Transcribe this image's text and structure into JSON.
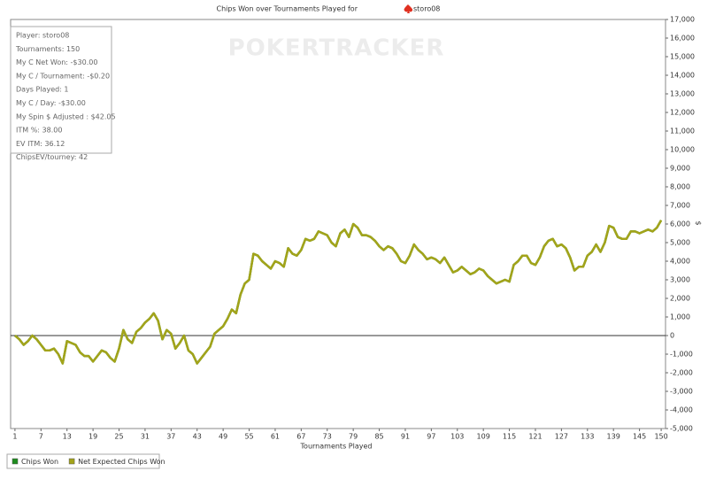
{
  "chart_data": {
    "type": "line",
    "title": "Chips Won over Tournaments Played for",
    "player": "storo08",
    "watermark": "POKERTRACKER",
    "xlabel": "Tournaments Played",
    "ylabel": "$",
    "stats": [
      "Player: storo08",
      "Tournaments: 150",
      "My C Net Won: -$30.00",
      "My C / Tournament: -$0.20",
      "Days Played: 1",
      "My C / Day: -$30.00",
      "My Spin $ Adjusted : $42.05",
      "ITM %: 38.00",
      "EV ITM: 36.12",
      "ChipsEV/tourney: 42"
    ],
    "x": [
      1,
      2,
      3,
      4,
      5,
      6,
      7,
      8,
      9,
      10,
      11,
      12,
      13,
      14,
      15,
      16,
      17,
      18,
      19,
      20,
      21,
      22,
      23,
      24,
      25,
      26,
      27,
      28,
      29,
      30,
      31,
      32,
      33,
      34,
      35,
      36,
      37,
      38,
      39,
      40,
      41,
      42,
      43,
      44,
      45,
      46,
      47,
      48,
      49,
      50,
      51,
      52,
      53,
      54,
      55,
      56,
      57,
      58,
      59,
      60,
      61,
      62,
      63,
      64,
      65,
      66,
      67,
      68,
      69,
      70,
      71,
      72,
      73,
      74,
      75,
      76,
      77,
      78,
      79,
      80,
      81,
      82,
      83,
      84,
      85,
      86,
      87,
      88,
      89,
      90,
      91,
      92,
      93,
      94,
      95,
      96,
      97,
      98,
      99,
      100,
      101,
      102,
      103,
      104,
      105,
      106,
      107,
      108,
      109,
      110,
      111,
      112,
      113,
      114,
      115,
      116,
      117,
      118,
      119,
      120,
      121,
      122,
      123,
      124,
      125,
      126,
      127,
      128,
      129,
      130,
      131,
      132,
      133,
      134,
      135,
      136,
      137,
      138,
      139,
      140,
      141,
      142,
      143,
      144,
      145,
      146,
      147,
      148,
      149,
      150
    ],
    "series": [
      {
        "name": "Chips Won",
        "color": "#1e8c1e",
        "values": [
          0,
          -200,
          -500,
          -300,
          0,
          -200,
          -500,
          -800,
          -800,
          -700,
          -1000,
          -1500,
          -300,
          -400,
          -500,
          -900,
          -1100,
          -1100,
          -1400,
          -1100,
          -800,
          -900,
          -1200,
          -1400,
          -700,
          300,
          -200,
          -400,
          200,
          400,
          700,
          900,
          1200,
          800,
          -200,
          300,
          100,
          -700,
          -400,
          0,
          -800,
          -1000,
          -1500,
          -1200,
          -900,
          -600,
          100,
          300,
          500,
          900,
          1400,
          1200,
          2200,
          2800,
          3000,
          4400,
          4300,
          4000,
          3800,
          3600,
          4000,
          3900,
          3700,
          4700,
          4400,
          4300,
          4600,
          5200,
          5100,
          5200,
          5600,
          5500,
          5400,
          5000,
          4800,
          5500,
          5700,
          5300,
          6000,
          5800,
          5400,
          5400,
          5300,
          5100,
          4800,
          4600,
          4800,
          4700,
          4400,
          4000,
          3900,
          4300,
          4900,
          4600,
          4400,
          4100,
          4200,
          4100,
          3900,
          4200,
          3800,
          3400,
          3500,
          3700,
          3500,
          3300,
          3400,
          3600,
          3500,
          3200,
          3000,
          2800,
          2900,
          3000,
          2900,
          3800,
          4000,
          4300,
          4300,
          3900,
          3800,
          4200,
          4800,
          5100,
          5200,
          4800,
          4900,
          4700,
          4200,
          3500,
          3700,
          3700,
          4300,
          4500,
          4900,
          4500,
          5000,
          5900,
          5800,
          5300,
          5200,
          5200,
          5600,
          5600,
          5500,
          5600,
          5700,
          5600,
          5800,
          6200
        ]
      },
      {
        "name": "Net Expected Chips Won",
        "color": "#a3a31a",
        "values": [
          0,
          -200,
          -500,
          -300,
          0,
          -200,
          -500,
          -800,
          -800,
          -700,
          -1000,
          -1500,
          -300,
          -400,
          -500,
          -900,
          -1100,
          -1100,
          -1400,
          -1100,
          -800,
          -900,
          -1200,
          -1400,
          -700,
          300,
          -200,
          -400,
          200,
          400,
          700,
          900,
          1200,
          800,
          -200,
          300,
          100,
          -700,
          -400,
          0,
          -800,
          -1000,
          -1500,
          -1200,
          -900,
          -600,
          100,
          300,
          500,
          900,
          1400,
          1200,
          2200,
          2800,
          3000,
          4400,
          4300,
          4000,
          3800,
          3600,
          4000,
          3900,
          3700,
          4700,
          4400,
          4300,
          4600,
          5200,
          5100,
          5200,
          5600,
          5500,
          5400,
          5000,
          4800,
          5500,
          5700,
          5300,
          6000,
          5800,
          5400,
          5400,
          5300,
          5100,
          4800,
          4600,
          4800,
          4700,
          4400,
          4000,
          3900,
          4300,
          4900,
          4600,
          4400,
          4100,
          4200,
          4100,
          3900,
          4200,
          3800,
          3400,
          3500,
          3700,
          3500,
          3300,
          3400,
          3600,
          3500,
          3200,
          3000,
          2800,
          2900,
          3000,
          2900,
          3800,
          4000,
          4300,
          4300,
          3900,
          3800,
          4200,
          4800,
          5100,
          5200,
          4800,
          4900,
          4700,
          4200,
          3500,
          3700,
          3700,
          4300,
          4500,
          4900,
          4500,
          5000,
          5900,
          5800,
          5300,
          5200,
          5200,
          5600,
          5600,
          5500,
          5600,
          5700,
          5600,
          5800,
          6200
        ]
      }
    ],
    "xlim": [
      0,
      151
    ],
    "xticks": [
      1,
      7,
      13,
      19,
      25,
      31,
      37,
      43,
      49,
      55,
      61,
      67,
      73,
      79,
      85,
      91,
      97,
      103,
      109,
      115,
      121,
      127,
      133,
      139,
      145,
      150
    ],
    "ylim": [
      -5000,
      17000
    ],
    "yticks": [
      {
        "value": -5000,
        "label": "-5,000"
      },
      {
        "value": -4000,
        "label": "-4,000"
      },
      {
        "value": -3000,
        "label": "-3,000"
      },
      {
        "value": -2000,
        "label": "-2,000"
      },
      {
        "value": -1000,
        "label": "-1,000"
      },
      0,
      {
        "value": 1000,
        "label": "1,000"
      },
      {
        "value": 2000,
        "label": "2,000"
      },
      {
        "value": 3000,
        "label": "3,000"
      },
      {
        "value": 4000,
        "label": "4,000"
      },
      {
        "value": 5000,
        "label": "5,000"
      },
      {
        "value": 6000,
        "label": "6,000"
      },
      {
        "value": 7000,
        "label": "7,000"
      },
      {
        "value": 8000,
        "label": "8,000"
      },
      {
        "value": 9000,
        "label": "9,000"
      },
      {
        "value": 10000,
        "label": "10,000"
      },
      {
        "value": 11000,
        "label": "11,000"
      },
      {
        "value": 12000,
        "label": "12,000"
      },
      {
        "value": 13000,
        "label": "13,000"
      },
      {
        "value": 14000,
        "label": "14,000"
      },
      {
        "value": 15000,
        "label": "15,000"
      },
      {
        "value": 16000,
        "label": "16,000"
      },
      {
        "value": 17000,
        "label": "17,000"
      }
    ],
    "grid": false
  }
}
